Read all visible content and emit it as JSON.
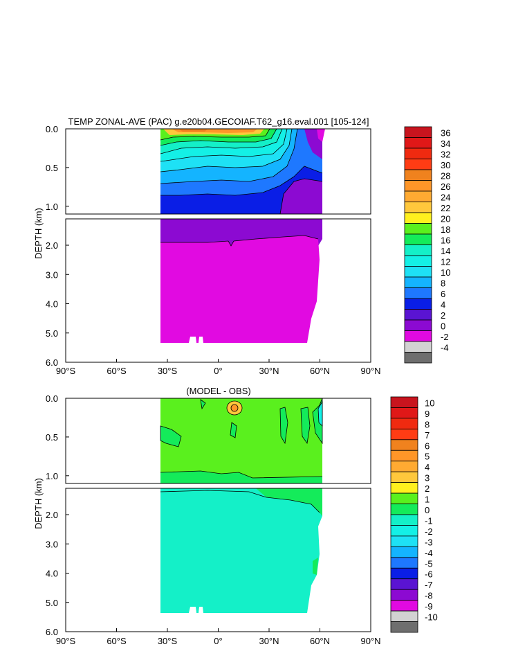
{
  "chart_data": [
    {
      "type": "heatmap",
      "title": "TEMP ZONAL-AVE (PAC) g.e20b04.GECOIAF.T62_g16.eval.001 [105-124]",
      "xlabel": "",
      "ylabel": "DEPTH (km)",
      "x_ticks": [
        "90°S",
        "60°S",
        "30°S",
        "0°",
        "30°N",
        "60°N",
        "90°N"
      ],
      "upper_y_ticks": [
        "0.0",
        "0.5",
        "1.0"
      ],
      "lower_y_ticks": [
        "2.0",
        "3.0",
        "4.0",
        "5.0",
        "6.0"
      ],
      "xlim": [
        -90,
        90
      ],
      "ylim": [
        0,
        6.0
      ],
      "colorbar": {
        "labels": [
          "36",
          "34",
          "32",
          "30",
          "28",
          "26",
          "24",
          "22",
          "20",
          "18",
          "16",
          "14",
          "12",
          "10",
          "8",
          "6",
          "4",
          "2",
          "0",
          "-2",
          "-4"
        ],
        "colors": [
          "#c8141e",
          "#e01818",
          "#f02a10",
          "#ff3c14",
          "#f0821e",
          "#ff9628",
          "#ffaa32",
          "#ffc83c",
          "#fff01e",
          "#5af01e",
          "#14eb5a",
          "#14f0c8",
          "#14f0e6",
          "#1ee1f5",
          "#14b4ff",
          "#1e78ff",
          "#0a1ee6",
          "#5a14d2",
          "#8c0ad2",
          "#e10ae1",
          "#d2d2d2",
          "#6e6e6e"
        ]
      }
    },
    {
      "type": "heatmap",
      "title": "(MODEL - OBS)",
      "xlabel": "",
      "ylabel": "DEPTH (km)",
      "x_ticks": [
        "90°S",
        "60°S",
        "30°S",
        "0°",
        "30°N",
        "60°N",
        "90°N"
      ],
      "upper_y_ticks": [
        "0.0",
        "0.5",
        "1.0"
      ],
      "lower_y_ticks": [
        "2.0",
        "3.0",
        "4.0",
        "5.0",
        "6.0"
      ],
      "xlim": [
        -90,
        90
      ],
      "ylim": [
        0,
        6.0
      ],
      "colorbar": {
        "labels": [
          "10",
          "9",
          "8",
          "7",
          "6",
          "5",
          "4",
          "3",
          "2",
          "1",
          "0",
          "-1",
          "-2",
          "-3",
          "-4",
          "-5",
          "-6",
          "-7",
          "-8",
          "-9",
          "-10"
        ],
        "colors": [
          "#c8141e",
          "#e01818",
          "#f02a10",
          "#ff3c14",
          "#f0821e",
          "#ff9628",
          "#ffaa32",
          "#ffc83c",
          "#fff01e",
          "#5af01e",
          "#14eb5a",
          "#14f0c8",
          "#14f0e6",
          "#1ee1f5",
          "#14b4ff",
          "#1e78ff",
          "#0a1ee6",
          "#5a14d2",
          "#8c0ad2",
          "#e10ae1",
          "#d2d2d2",
          "#6e6e6e"
        ]
      }
    }
  ]
}
